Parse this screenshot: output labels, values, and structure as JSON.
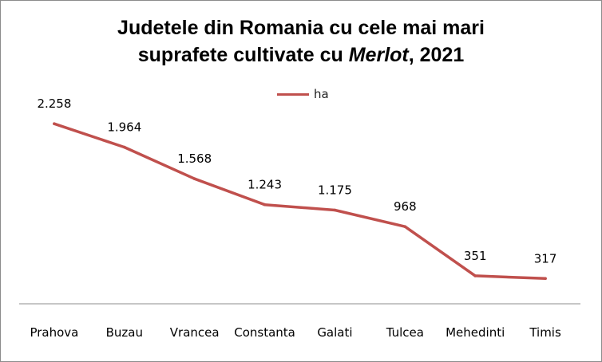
{
  "chart_data": {
    "type": "line",
    "title_line1": "Judetele din Romania cu cele mai mari",
    "title_line2_prefix": "suprafete cultivate cu ",
    "title_line2_italic": "Merlot",
    "title_line2_suffix": ", 2021",
    "categories": [
      "Prahova",
      "Buzau",
      "Vrancea",
      "Constanta",
      "Galati",
      "Tulcea",
      "Mehedinti",
      "Timis"
    ],
    "series": [
      {
        "name": "ha",
        "color": "#c0504d",
        "values": [
          2258,
          1964,
          1568,
          1243,
          1175,
          968,
          351,
          317
        ],
        "labels": [
          "2.258",
          "1.964",
          "1.568",
          "1.243",
          "1.175",
          "968",
          "351",
          "317"
        ]
      }
    ],
    "ylim": [
      0,
      2600
    ],
    "grid": false,
    "legend_position": "top"
  }
}
